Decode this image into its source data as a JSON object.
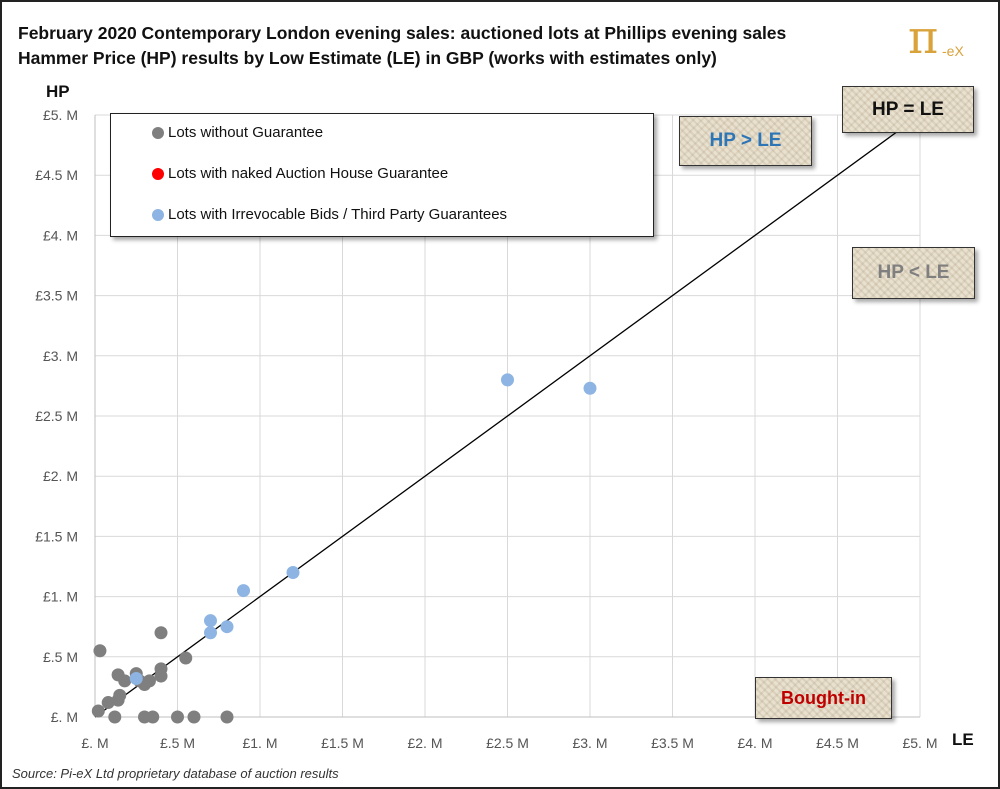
{
  "title_line1": "February 2020 Contemporary London evening sales:  auctioned lots at Phillips evening sales",
  "title_line2": "Hammer Price (HP) results by Low Estimate (LE) in GBP (works with estimates only)",
  "logo": {
    "symbol": "π",
    "suffix": "-eX"
  },
  "source": "Source:  Pi-eX Ltd proprietary database of auction results",
  "annotations": {
    "hp_gt_le": "HP > LE",
    "hp_lt_le": "HP < LE",
    "hp_eq_le": "HP = LE",
    "bought_in": "Bought-in"
  },
  "colors": {
    "no_guarantee": "#7f7f7f",
    "house_guarantee": "#ff0000",
    "third_party": "#8db4e2",
    "hp_gt_le_text": "#2e75b6",
    "hp_lt_le_text": "#7f7f7f",
    "bought_in_text": "#c00000",
    "grid": "#d9d9d9",
    "line": "#000000"
  },
  "chart_data": {
    "type": "scatter",
    "title": "February 2020 Contemporary London evening sales:  auctioned lots at Phillips evening sales\nHammer Price (HP) results by Low Estimate (LE) in GBP (works with estimates only)",
    "xlabel": "LE",
    "ylabel": "HP",
    "units": "GBP millions",
    "xlim": [
      0,
      5
    ],
    "ylim": [
      0,
      5
    ],
    "x_ticks": [
      "£. M",
      "£.5 M",
      "£1. M",
      "£1.5 M",
      "£2. M",
      "£2.5 M",
      "£3. M",
      "£3.5 M",
      "£4. M",
      "£4.5 M",
      "£5. M"
    ],
    "y_ticks": [
      "£. M",
      "£.5 M",
      "£1. M",
      "£1.5 M",
      "£2. M",
      "£2.5 M",
      "£3. M",
      "£3.5 M",
      "£4. M",
      "£4.5 M",
      "£5. M"
    ],
    "grid": true,
    "legend_position": "top-left",
    "reference_line": {
      "name": "HP = LE",
      "from": [
        0,
        0
      ],
      "to": [
        4.9,
        4.9
      ]
    },
    "series": [
      {
        "name": "Lots without Guarantee",
        "color": "#7f7f7f",
        "points": [
          [
            0.02,
            0.05
          ],
          [
            0.03,
            0.55
          ],
          [
            0.08,
            0.12
          ],
          [
            0.12,
            0.0
          ],
          [
            0.14,
            0.14
          ],
          [
            0.14,
            0.35
          ],
          [
            0.15,
            0.18
          ],
          [
            0.18,
            0.3
          ],
          [
            0.25,
            0.36
          ],
          [
            0.27,
            0.3
          ],
          [
            0.3,
            0.27
          ],
          [
            0.3,
            0.0
          ],
          [
            0.33,
            0.3
          ],
          [
            0.35,
            0.0
          ],
          [
            0.4,
            0.7
          ],
          [
            0.4,
            0.4
          ],
          [
            0.4,
            0.34
          ],
          [
            0.5,
            0.0
          ],
          [
            0.55,
            0.49
          ],
          [
            0.6,
            0.0
          ],
          [
            0.8,
            0.0
          ]
        ]
      },
      {
        "name": "Lots with naked Auction House Guarantee",
        "color": "#ff0000",
        "points": []
      },
      {
        "name": "Lots with Irrevocable Bids / Third Party Guarantees",
        "color": "#8db4e2",
        "points": [
          [
            0.25,
            0.32
          ],
          [
            0.7,
            0.8
          ],
          [
            0.7,
            0.7
          ],
          [
            0.8,
            0.75
          ],
          [
            0.9,
            1.05
          ],
          [
            1.2,
            1.2
          ],
          [
            2.5,
            2.8
          ],
          [
            3.0,
            2.73
          ]
        ]
      }
    ]
  }
}
